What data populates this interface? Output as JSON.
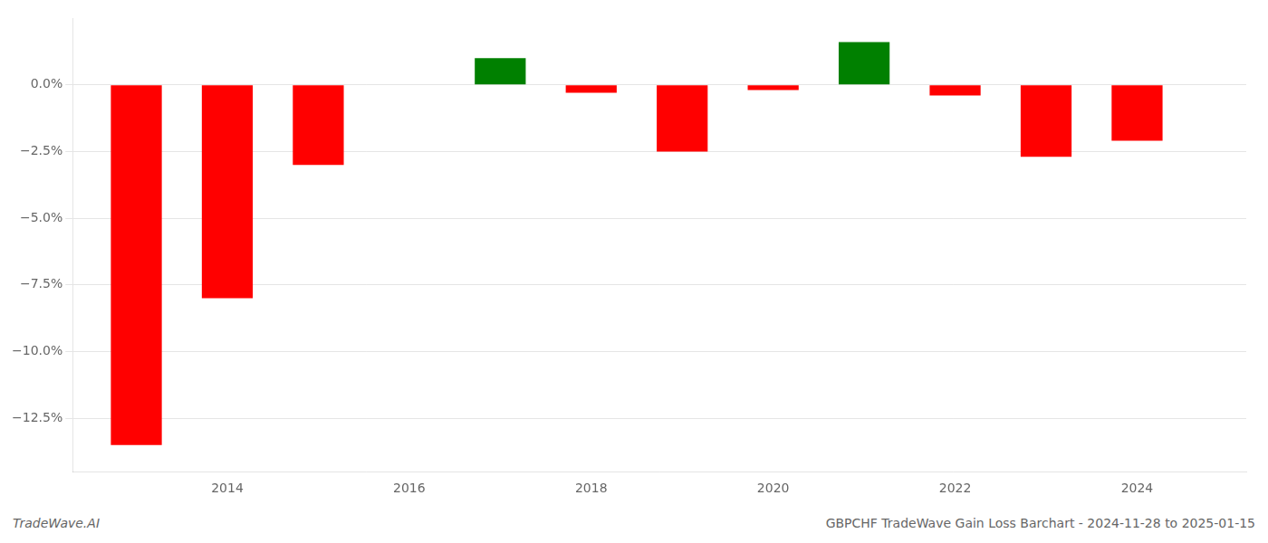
{
  "chart_data": {
    "type": "bar",
    "x": [
      2013,
      2014,
      2015,
      2017,
      2018,
      2019,
      2020,
      2021,
      2022,
      2023,
      2024
    ],
    "values": [
      -13.5,
      -8.0,
      -3.0,
      1.0,
      -0.3,
      -2.5,
      -0.2,
      1.6,
      -0.4,
      -2.7,
      -2.1
    ],
    "colors": [
      "#ff0000",
      "#ff0000",
      "#ff0000",
      "#008000",
      "#ff0000",
      "#ff0000",
      "#ff0000",
      "#008000",
      "#ff0000",
      "#ff0000",
      "#ff0000"
    ],
    "xlim": [
      2012.3,
      2025.2
    ],
    "xticks": [
      2014,
      2016,
      2018,
      2020,
      2022,
      2024
    ],
    "ylim": [
      -14.5,
      2.5
    ],
    "yticks": [
      {
        "value": 0.0,
        "label": "0.0%"
      },
      {
        "value": -2.5,
        "label": "−2.5%"
      },
      {
        "value": -5.0,
        "label": "−5.0%"
      },
      {
        "value": -7.5,
        "label": "−7.5%"
      },
      {
        "value": -10.0,
        "label": "−10.0%"
      },
      {
        "value": -12.5,
        "label": "−12.5%"
      }
    ],
    "grid": "y",
    "annotations": [
      "TradeWave.AI",
      "GBPCHF TradeWave Gain Loss Barchart - 2024-11-28 to 2025-01-15"
    ]
  }
}
